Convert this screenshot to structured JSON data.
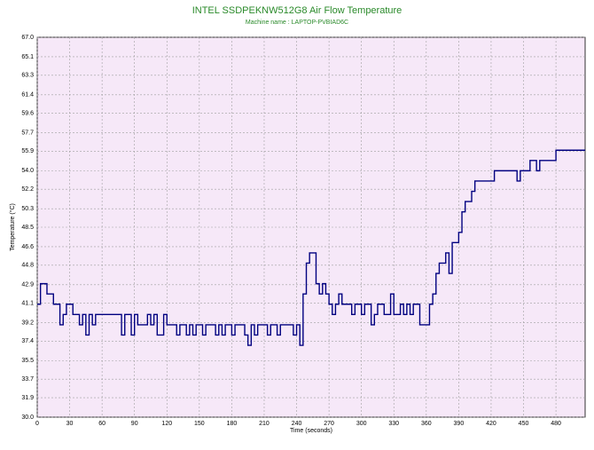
{
  "chart_data": {
    "type": "line",
    "title": "INTEL SSDPEKNW512G8 Air Flow Temperature",
    "subtitle": "Machine name : LAPTOP-PVBIAD6C",
    "x_label": "Time (seconds)",
    "y_label": "Temperature (°C)",
    "step": true,
    "grid": true,
    "xlim": [
      0,
      507
    ],
    "ylim": [
      30,
      67
    ],
    "xticks": [
      0,
      30,
      60,
      90,
      120,
      150,
      180,
      210,
      240,
      270,
      300,
      330,
      360,
      390,
      420,
      450,
      480
    ],
    "yticks": [
      {
        "value": 30,
        "label": "30.0"
      },
      31.9,
      33.7,
      35.5,
      37.4,
      39.2,
      41.1,
      42.9,
      44.8,
      46.6,
      48.5,
      50.3,
      52.2,
      {
        "value": 54,
        "label": "54.0"
      },
      55.9,
      57.7,
      59.6,
      61.4,
      63.3,
      65.1,
      {
        "value": 67,
        "label": "67.0"
      }
    ],
    "x": [
      0,
      3,
      6,
      9,
      12,
      15,
      18,
      21,
      24,
      27,
      30,
      33,
      36,
      39,
      42,
      45,
      48,
      51,
      54,
      57,
      60,
      63,
      66,
      69,
      72,
      75,
      78,
      81,
      84,
      87,
      90,
      93,
      96,
      99,
      102,
      105,
      108,
      111,
      114,
      117,
      120,
      123,
      126,
      129,
      132,
      135,
      138,
      141,
      144,
      147,
      150,
      153,
      156,
      159,
      162,
      165,
      168,
      171,
      174,
      177,
      180,
      183,
      186,
      189,
      192,
      195,
      198,
      201,
      204,
      207,
      210,
      213,
      216,
      219,
      222,
      225,
      228,
      231,
      234,
      237,
      240,
      243,
      246,
      249,
      252,
      255,
      258,
      261,
      264,
      267,
      270,
      273,
      276,
      279,
      282,
      285,
      288,
      291,
      294,
      297,
      300,
      303,
      306,
      309,
      312,
      315,
      318,
      321,
      324,
      327,
      330,
      333,
      336,
      339,
      342,
      345,
      348,
      351,
      354,
      357,
      360,
      363,
      366,
      369,
      372,
      375,
      378,
      381,
      384,
      387,
      390,
      393,
      396,
      399,
      402,
      405,
      408,
      411,
      414,
      417,
      420,
      423,
      426,
      429,
      432,
      435,
      438,
      441,
      444,
      447,
      450,
      453,
      456,
      459,
      462,
      465,
      468,
      471,
      474,
      477,
      480,
      483,
      486,
      489,
      492,
      495,
      498,
      501,
      504,
      507
    ],
    "series": [
      {
        "name": "Air Flow Temperature",
        "color": "#000080",
        "values": [
          41,
          43,
          43,
          42,
          42,
          41,
          41,
          39,
          40,
          41,
          41,
          40,
          40,
          39,
          40,
          38,
          40,
          39,
          40,
          40,
          40,
          40,
          40,
          40,
          40,
          40,
          38,
          40,
          40,
          38,
          40,
          39,
          39,
          39,
          40,
          39,
          40,
          38,
          38,
          40,
          39,
          39,
          39,
          38,
          39,
          39,
          38,
          39,
          38,
          39,
          39,
          38,
          39,
          39,
          39,
          38,
          39,
          38,
          39,
          39,
          38,
          39,
          39,
          39,
          38,
          37,
          39,
          38,
          39,
          39,
          39,
          38,
          39,
          39,
          38,
          39,
          39,
          39,
          39,
          38,
          39,
          37,
          42,
          45,
          46,
          46,
          43,
          42,
          43,
          42,
          41,
          40,
          41,
          42,
          41,
          41,
          41,
          40,
          41,
          41,
          40,
          41,
          41,
          39,
          40,
          41,
          41,
          40,
          40,
          42,
          40,
          40,
          41,
          40,
          41,
          40,
          41,
          41,
          39,
          39,
          39,
          41,
          42,
          44,
          45,
          45,
          46,
          44,
          47,
          47,
          48,
          50,
          51,
          51,
          52,
          53,
          53,
          53,
          53,
          53,
          53,
          54,
          54,
          54,
          54,
          54,
          54,
          54,
          53,
          54,
          54,
          54,
          55,
          55,
          54,
          55,
          55,
          55,
          55,
          55,
          56,
          56,
          56,
          56,
          56,
          56,
          56,
          56,
          56,
          56
        ]
      }
    ]
  }
}
